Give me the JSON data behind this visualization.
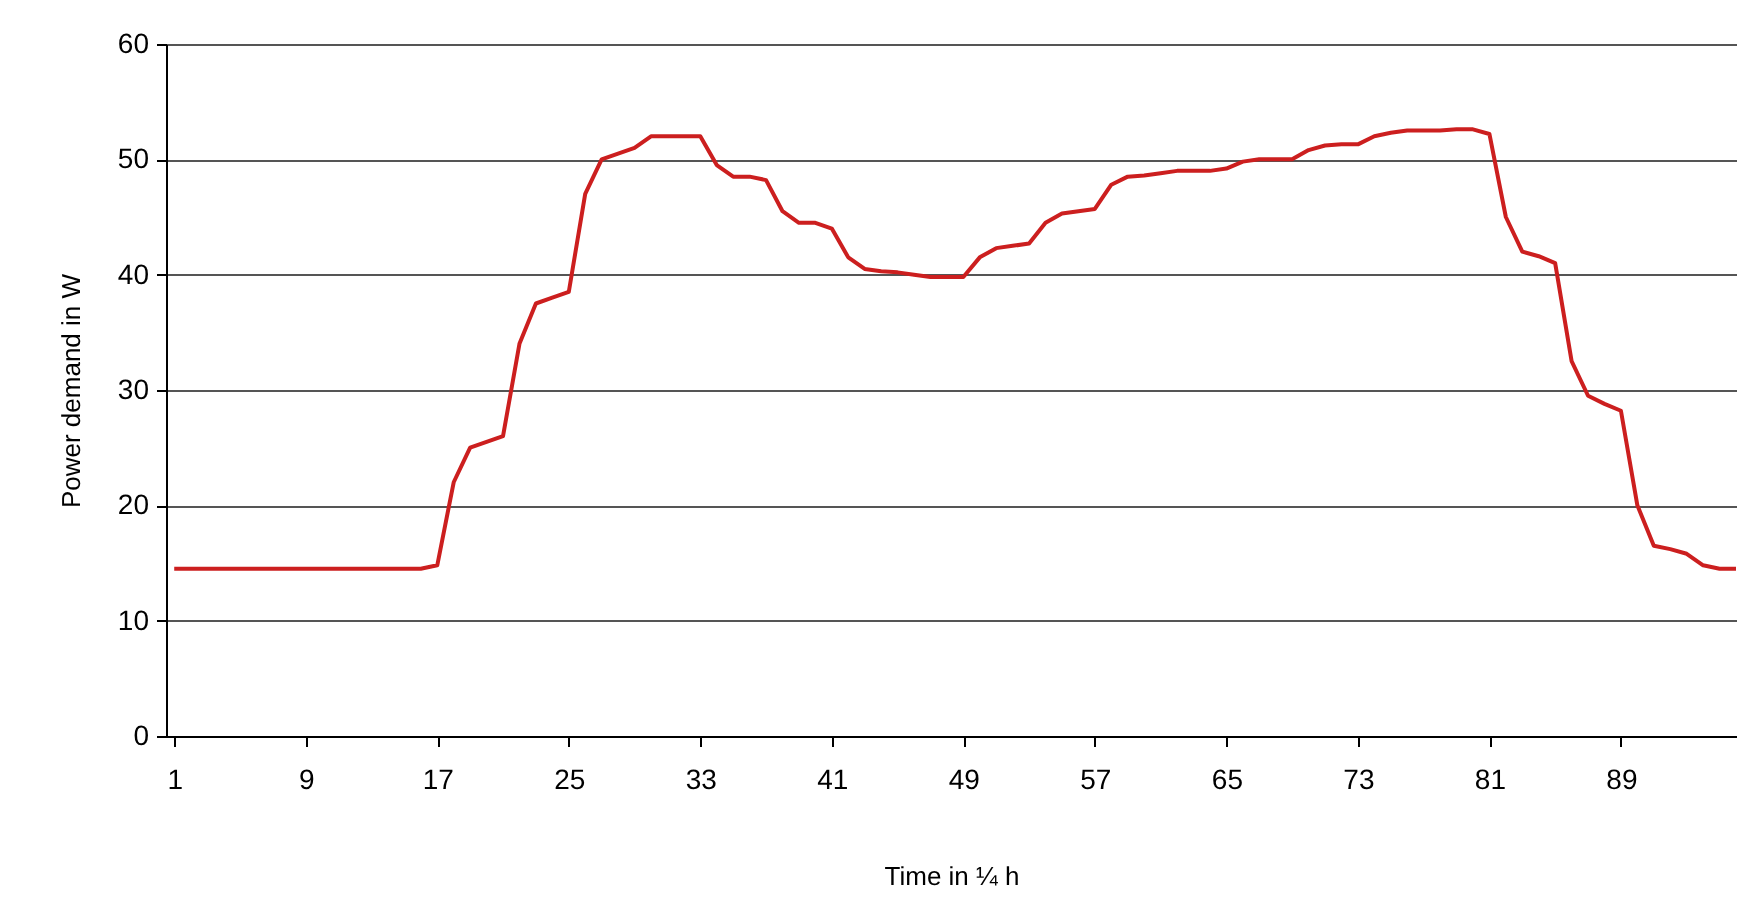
{
  "chart_data": {
    "type": "line",
    "xlabel": "Time in ¼ h",
    "ylabel": "Power demand in W",
    "x": [
      1,
      2,
      3,
      4,
      5,
      6,
      7,
      8,
      9,
      10,
      11,
      12,
      13,
      14,
      15,
      16,
      17,
      18,
      19,
      20,
      21,
      22,
      23,
      24,
      25,
      26,
      27,
      28,
      29,
      30,
      31,
      32,
      33,
      34,
      35,
      36,
      37,
      38,
      39,
      40,
      41,
      42,
      43,
      44,
      45,
      46,
      47,
      48,
      49,
      50,
      51,
      52,
      53,
      54,
      55,
      56,
      57,
      58,
      59,
      60,
      61,
      62,
      63,
      64,
      65,
      66,
      67,
      68,
      69,
      70,
      71,
      72,
      73,
      74,
      75,
      76,
      77,
      78,
      79,
      80,
      81,
      82,
      83,
      84,
      85,
      86,
      87,
      88,
      89,
      90,
      91,
      92,
      93,
      94,
      95,
      96
    ],
    "series": [
      {
        "color": "#cc1f1f",
        "values": [
          14.5,
          14.5,
          14.5,
          14.5,
          14.5,
          14.5,
          14.5,
          14.5,
          14.5,
          14.5,
          14.5,
          14.5,
          14.5,
          14.5,
          14.5,
          14.5,
          14.8,
          22,
          25,
          25.5,
          26,
          34,
          37.5,
          38,
          38.5,
          47,
          50,
          50.5,
          51,
          52,
          52,
          52,
          52,
          49.5,
          48.5,
          48.5,
          48.2,
          45.5,
          44.5,
          44.5,
          44,
          41.5,
          40.5,
          40.3,
          40.2,
          40,
          39.8,
          39.8,
          39.8,
          41.5,
          42.3,
          42.5,
          42.7,
          44.5,
          45.3,
          45.5,
          45.7,
          47.8,
          48.5,
          48.6,
          48.8,
          49,
          49,
          49,
          49.2,
          49.8,
          50,
          50,
          50,
          50.8,
          51.2,
          51.3,
          51.3,
          52,
          52.3,
          52.5,
          52.5,
          52.5,
          52.6,
          52.6,
          52.2,
          45,
          42,
          41.6,
          41,
          32.5,
          29.5,
          28.8,
          28.2,
          20,
          16.5,
          16.2,
          15.8,
          14.8,
          14.5,
          14.5
        ]
      }
    ],
    "xlim": [
      0.5,
      96
    ],
    "xticks": [
      1,
      9,
      17,
      25,
      33,
      41,
      49,
      57,
      65,
      73,
      81,
      89
    ],
    "ylim": [
      0,
      60
    ],
    "yticks": [
      0,
      10,
      20,
      30,
      40,
      50,
      60
    ],
    "grid": "y",
    "line_style": "solid"
  }
}
